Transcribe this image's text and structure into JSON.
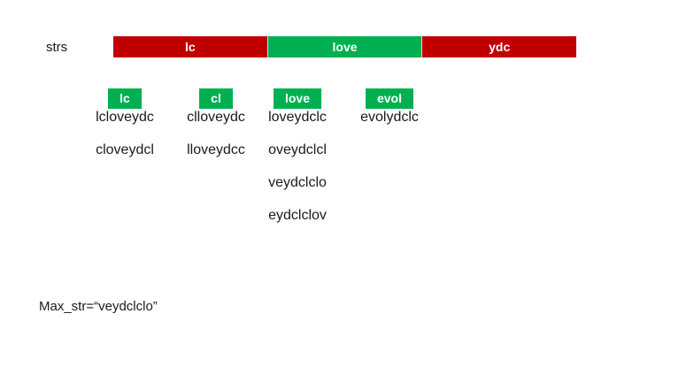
{
  "strs_label": "strs",
  "strip": [
    {
      "text": "lc",
      "color": "#c00000"
    },
    {
      "text": "love",
      "color": "#00b050"
    },
    {
      "text": "ydc",
      "color": "#c00000"
    }
  ],
  "columns": [
    {
      "tag": "lc",
      "rotations": [
        "lcloveydc",
        "cloveydcl"
      ]
    },
    {
      "tag": "cl",
      "rotations": [
        "clloveydc",
        "lloveydcc"
      ]
    },
    {
      "tag": "love",
      "rotations": [
        "loveydclc",
        "oveydclcl",
        "veydclclo",
        "eydclclov"
      ]
    },
    {
      "tag": "evol",
      "rotations": [
        "evolydclc"
      ]
    }
  ],
  "answer": "Max_str=“veydclclo”"
}
